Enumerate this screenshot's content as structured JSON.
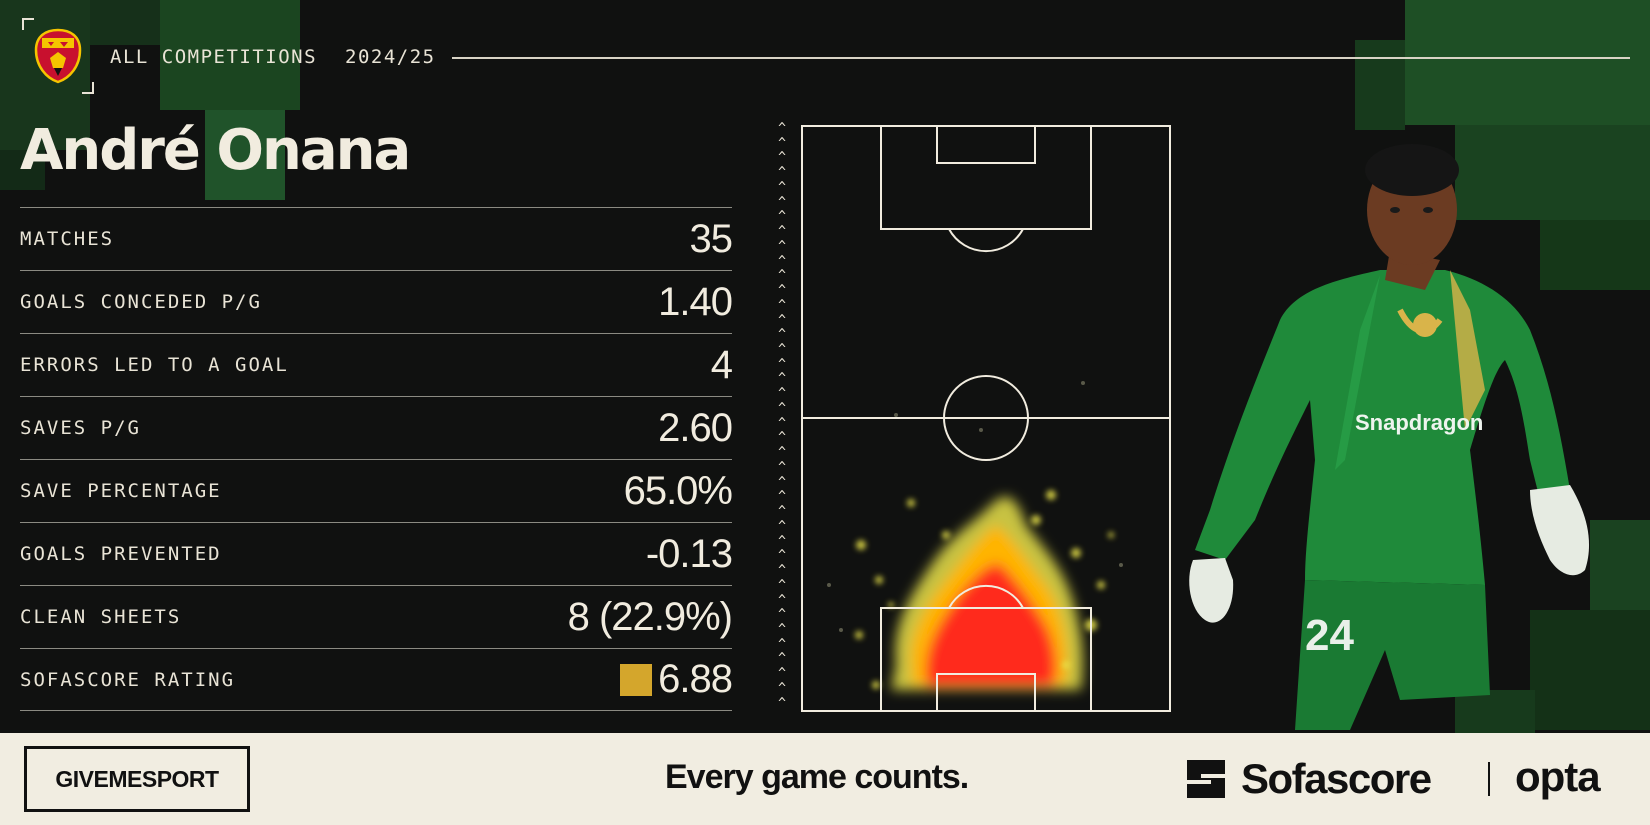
{
  "header": {
    "competition": "ALL COMPETITIONS",
    "season": "2024/25",
    "club_crest_icon": "manchester-united-crest"
  },
  "player": {
    "name": "André Onana",
    "shirt_number": "24",
    "sponsor": "Snapdragon"
  },
  "stats": [
    {
      "label": "MATCHES",
      "value": "35"
    },
    {
      "label": "GOALS CONCEDED P/G",
      "value": "1.40"
    },
    {
      "label": "ERRORS LED TO A GOAL",
      "value": "4"
    },
    {
      "label": "SAVES P/G",
      "value": "2.60"
    },
    {
      "label": "SAVE PERCENTAGE",
      "value": "65.0%"
    },
    {
      "label": "GOALS PREVENTED",
      "value": "-0.13"
    },
    {
      "label": "CLEAN SHEETS",
      "value": "8 (22.9%)"
    },
    {
      "label": "SOFASCORE RATING",
      "value": "6.88"
    }
  ],
  "heatmap": {
    "direction_icon": "caret-up-icon",
    "arrow_glyph": "^"
  },
  "footer": {
    "publisher": "GIVEMESPORT",
    "tagline": "Every game counts.",
    "brand": "Sofascore",
    "partner": "opta"
  },
  "colors": {
    "background": "#101110",
    "accent_green": "#1d5b26",
    "rating_badge": "#d4a62c",
    "heat_core": "#ff2b1a",
    "heat_mid": "#ffb400",
    "heat_edge": "#e8e24a",
    "footer_bg": "#f1ede1"
  }
}
